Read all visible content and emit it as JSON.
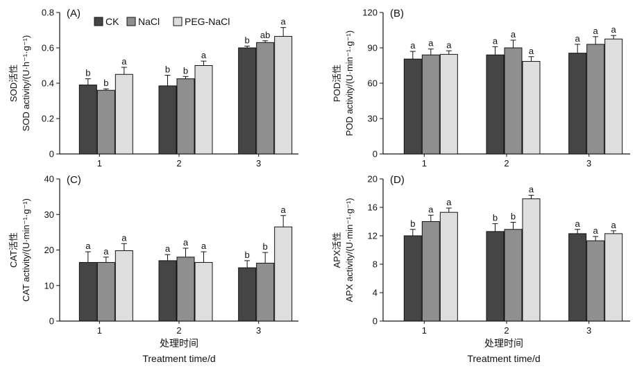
{
  "figure": {
    "xlabel_cn": "处理时间",
    "xlabel_en": "Treatment time/d"
  },
  "legend": {
    "entries": [
      {
        "name": "CK",
        "color": "#454545"
      },
      {
        "name": "NaCl",
        "color": "#8f8f8f"
      },
      {
        "name": "PEG-NaCl",
        "color": "#dedede"
      }
    ]
  },
  "chart_data": [
    {
      "type": "bar",
      "panel": "(A)",
      "ylabel_cn": "SOD活性",
      "ylabel_en": "SOD activity/(U·h⁻¹·g⁻¹)",
      "categories": [
        "1",
        "2",
        "3"
      ],
      "ylim": [
        0,
        0.8
      ],
      "yticks": [
        "0",
        "0.2",
        "0.4",
        "0.6",
        "0.8"
      ],
      "series": [
        {
          "name": "CK",
          "values": [
            0.39,
            0.385,
            0.6
          ],
          "errors": [
            0.035,
            0.06,
            0.01
          ],
          "letters": [
            "b",
            "b",
            "b"
          ]
        },
        {
          "name": "NaCl",
          "values": [
            0.36,
            0.425,
            0.63
          ],
          "errors": [
            0.008,
            0.013,
            0.01
          ],
          "letters": [
            "b",
            "b",
            "ab"
          ]
        },
        {
          "name": "PEG-NaCl",
          "values": [
            0.45,
            0.5,
            0.665
          ],
          "errors": [
            0.04,
            0.025,
            0.05
          ],
          "letters": [
            "a",
            "a",
            "a"
          ]
        }
      ]
    },
    {
      "type": "bar",
      "panel": "(B)",
      "ylabel_cn": "POD活性",
      "ylabel_en": "POD activity/(U·min⁻¹·g⁻¹)",
      "categories": [
        "1",
        "2",
        "3"
      ],
      "ylim": [
        0,
        120
      ],
      "yticks": [
        "0",
        "30",
        "60",
        "90",
        "120"
      ],
      "series": [
        {
          "name": "CK",
          "values": [
            80.5,
            84,
            85.5
          ],
          "errors": [
            6.5,
            7,
            7.5
          ],
          "letters": [
            "a",
            "a",
            "a"
          ]
        },
        {
          "name": "NaCl",
          "values": [
            84,
            90,
            93
          ],
          "errors": [
            5,
            6.5,
            6.5
          ],
          "letters": [
            "a",
            "a",
            "a"
          ]
        },
        {
          "name": "PEG-NaCl",
          "values": [
            84.5,
            78.5,
            97.5
          ],
          "errors": [
            3,
            4,
            3
          ],
          "letters": [
            "a",
            "a",
            "a"
          ]
        }
      ]
    },
    {
      "type": "bar",
      "panel": "(C)",
      "ylabel_cn": "CAT活性",
      "ylabel_en": "CAT activity/(U·min⁻¹·g⁻¹)",
      "categories": [
        "1",
        "2",
        "3"
      ],
      "ylim": [
        0,
        40
      ],
      "yticks": [
        "0",
        "10",
        "20",
        "30",
        "40"
      ],
      "series": [
        {
          "name": "CK",
          "values": [
            16.5,
            17,
            15
          ],
          "errors": [
            3,
            1.7,
            2
          ],
          "letters": [
            "a",
            "a",
            "b"
          ]
        },
        {
          "name": "NaCl",
          "values": [
            16.5,
            18,
            16.3
          ],
          "errors": [
            1.5,
            2.5,
            3
          ],
          "letters": [
            "a",
            "a",
            "b"
          ]
        },
        {
          "name": "PEG-NaCl",
          "values": [
            19.8,
            16.5,
            26.5
          ],
          "errors": [
            2,
            3,
            3.2
          ],
          "letters": [
            "a",
            "a",
            "a"
          ]
        }
      ]
    },
    {
      "type": "bar",
      "panel": "(D)",
      "ylabel_cn": "APX活性",
      "ylabel_en": "APX activity/(U·min⁻¹·g⁻¹)",
      "categories": [
        "1",
        "2",
        "3"
      ],
      "ylim": [
        0,
        20
      ],
      "yticks": [
        "0",
        "4",
        "8",
        "12",
        "16",
        "20"
      ],
      "series": [
        {
          "name": "CK",
          "values": [
            12,
            12.6,
            12.3
          ],
          "errors": [
            0.9,
            1.1,
            0.6
          ],
          "letters": [
            "b",
            "b",
            "a"
          ]
        },
        {
          "name": "NaCl",
          "values": [
            14,
            12.9,
            11.3
          ],
          "errors": [
            0.9,
            1,
            0.6
          ],
          "letters": [
            "a",
            "b",
            "a"
          ]
        },
        {
          "name": "PEG-NaCl",
          "values": [
            15.3,
            17.2,
            12.3
          ],
          "errors": [
            0.6,
            0.5,
            0.4
          ],
          "letters": [
            "a",
            "a",
            "a"
          ]
        }
      ]
    }
  ]
}
